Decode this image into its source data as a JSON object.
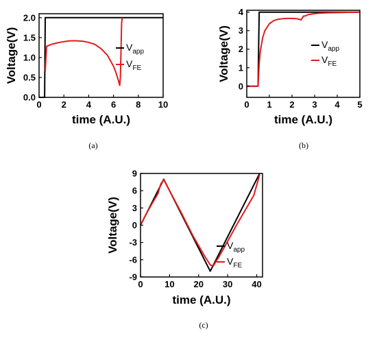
{
  "chart_data": [
    {
      "id": "a",
      "type": "line",
      "caption": "(a)",
      "xlabel": "time (A.U.)",
      "ylabel": "Voltage(V)",
      "xlim": [
        0,
        10
      ],
      "ylim": [
        0,
        2.1
      ],
      "xticks": [
        "0",
        "2",
        "4",
        "6",
        "8",
        "10"
      ],
      "xtick_values": [
        0,
        2,
        4,
        6,
        8,
        10
      ],
      "yticks": [
        "0.0",
        "0.5",
        "1.0",
        "1.5",
        "2.0"
      ],
      "ytick_values": [
        0,
        0.5,
        1.0,
        1.5,
        2.0
      ],
      "legend_position": "right",
      "series": [
        {
          "name": "V",
          "sub": "app",
          "color": "#000000",
          "x": [
            0,
            0.45,
            0.5,
            10
          ],
          "y": [
            0,
            0,
            2.0,
            2.0
          ]
        },
        {
          "name": "V",
          "sub": "FE",
          "color": "#e41a1c",
          "x": [
            0.5,
            0.6,
            1,
            1.5,
            2,
            2.5,
            3,
            3.5,
            4,
            4.5,
            5,
            5.5,
            6,
            6.2,
            6.4,
            6.5,
            6.55,
            6.6,
            6.65,
            6.7
          ],
          "y": [
            0.65,
            1.28,
            1.33,
            1.37,
            1.4,
            1.42,
            1.42,
            1.41,
            1.38,
            1.33,
            1.22,
            1.06,
            0.78,
            0.62,
            0.42,
            0.3,
            0.5,
            1.15,
            1.85,
            2.0
          ]
        }
      ]
    },
    {
      "id": "b",
      "type": "line",
      "caption": "(b)",
      "xlabel": "time (A.U.)",
      "ylabel": "Voltage(V)",
      "xlim": [
        0,
        5
      ],
      "ylim": [
        -0.6,
        4.1
      ],
      "xticks": [
        "0",
        "1",
        "2",
        "3",
        "4",
        "5"
      ],
      "xtick_values": [
        0,
        1,
        2,
        3,
        4,
        5
      ],
      "yticks": [
        "0",
        "1",
        "2",
        "3",
        "4"
      ],
      "ytick_values": [
        0,
        1,
        2,
        3,
        4
      ],
      "legend_position": "right",
      "series": [
        {
          "name": "V",
          "sub": "app",
          "color": "#000000",
          "x": [
            0,
            0.5,
            0.55,
            5
          ],
          "y": [
            0,
            0,
            4.0,
            4.0
          ]
        },
        {
          "name": "V",
          "sub": "FE",
          "color": "#e41a1c",
          "x": [
            0,
            0.5,
            0.55,
            0.6,
            0.7,
            0.8,
            1.0,
            1.2,
            1.4,
            1.6,
            1.8,
            2.0,
            2.2,
            2.35,
            2.4,
            2.5,
            2.6,
            2.7,
            2.8,
            3.0,
            3.2,
            3.5,
            3.8,
            4.2,
            5.0
          ],
          "y": [
            0,
            0,
            1.2,
            1.9,
            2.6,
            3.0,
            3.38,
            3.55,
            3.62,
            3.65,
            3.66,
            3.66,
            3.65,
            3.6,
            3.58,
            3.78,
            3.8,
            3.86,
            3.88,
            3.92,
            3.94,
            3.96,
            3.97,
            3.98,
            4.0
          ]
        }
      ]
    },
    {
      "id": "c",
      "type": "line",
      "caption": "(c)",
      "xlabel": "time (A.U.)",
      "ylabel": "Voltage(V)",
      "xlim": [
        0,
        42
      ],
      "ylim": [
        -9,
        9
      ],
      "xticks": [
        "0",
        "10",
        "20",
        "30",
        "40"
      ],
      "xtick_values": [
        0,
        10,
        20,
        30,
        40
      ],
      "yticks": [
        "9",
        "6",
        "3",
        "0",
        "-3",
        "-6",
        "-9"
      ],
      "ytick_values": [
        9,
        6,
        3,
        0,
        -3,
        -6,
        -9
      ],
      "legend_position": "bottom-right",
      "series": [
        {
          "name": "V",
          "sub": "app",
          "color": "#000000",
          "x": [
            0,
            8,
            24,
            41
          ],
          "y": [
            0,
            8,
            -8,
            9
          ]
        },
        {
          "name": "V",
          "sub": "FE",
          "color": "#e41a1c",
          "x": [
            0,
            2,
            4,
            6,
            7,
            8,
            10,
            14,
            18,
            22,
            24,
            25,
            27,
            30,
            33,
            36,
            39,
            41
          ],
          "y": [
            0,
            2,
            3.8,
            5.5,
            7.2,
            7.9,
            6.0,
            2.2,
            -1.8,
            -5.3,
            -6.9,
            -7.1,
            -5.5,
            -2.8,
            0,
            2.6,
            5.2,
            8.8
          ]
        }
      ]
    }
  ]
}
